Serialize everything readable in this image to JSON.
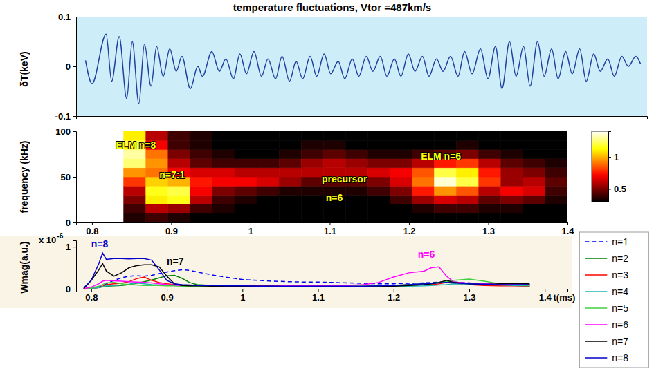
{
  "chart_data": [
    {
      "type": "line",
      "title": "temperature fluctuations, Vtor =487km/s",
      "y_label": "δT(keV)",
      "xlim": [
        0.78,
        1.39
      ],
      "ylim": [
        -0.1,
        0.1
      ],
      "yticks": [
        -0.1,
        0,
        0.1
      ],
      "tick_labels": "y",
      "x": [
        0.79,
        0.797,
        0.812,
        0.818,
        0.826,
        0.834,
        0.84,
        0.847,
        0.853,
        0.86,
        0.866,
        0.873,
        0.88,
        0.887,
        0.893,
        0.902,
        0.91,
        0.915,
        0.925,
        0.933,
        0.94,
        0.948,
        0.955,
        0.962,
        0.97,
        0.978,
        0.985,
        0.993,
        1.0,
        1.008,
        1.015,
        1.022,
        1.03,
        1.037,
        1.045,
        1.052,
        1.06,
        1.067,
        1.075,
        1.082,
        1.09,
        1.097,
        1.105,
        1.112,
        1.12,
        1.127,
        1.135,
        1.142,
        1.15,
        1.157,
        1.165,
        1.172,
        1.18,
        1.188,
        1.195,
        1.203,
        1.212,
        1.22,
        1.228,
        1.235,
        1.243,
        1.25,
        1.258,
        1.265,
        1.273,
        1.28,
        1.288,
        1.295,
        1.303,
        1.31,
        1.318,
        1.325,
        1.333,
        1.34,
        1.348,
        1.355,
        1.363,
        1.37,
        1.378,
        1.383
      ],
      "series": [
        {
          "color": "#2040a0",
          "line_style": "solid",
          "values": [
            0.012,
            -0.035,
            0.065,
            -0.03,
            0.06,
            -0.065,
            0.05,
            -0.075,
            0.045,
            -0.04,
            0.04,
            -0.02,
            0.035,
            -0.01,
            0.02,
            -0.045,
            0.0,
            -0.02,
            0.03,
            -0.01,
            0.015,
            -0.025,
            0.025,
            -0.015,
            0.03,
            -0.02,
            0.015,
            -0.025,
            0.02,
            -0.03,
            0.01,
            -0.025,
            0.02,
            -0.02,
            0.025,
            -0.015,
            0.01,
            -0.025,
            0.015,
            -0.02,
            0.02,
            -0.01,
            0.02,
            -0.02,
            0.015,
            -0.02,
            0.025,
            -0.01,
            0.02,
            -0.02,
            0.015,
            -0.01,
            0.02,
            -0.02,
            0.03,
            -0.015,
            0.035,
            -0.025,
            0.04,
            -0.045,
            0.05,
            -0.02,
            0.04,
            -0.04,
            0.05,
            -0.02,
            0.035,
            -0.025,
            0.03,
            -0.015,
            0.035,
            -0.03,
            0.025,
            -0.01,
            0.015,
            -0.02,
            0.02,
            0.0,
            0.02,
            0.005
          ]
        }
      ]
    },
    {
      "type": "heatmap",
      "y_label": "frequency (kHz)",
      "xlim": [
        0.78,
        1.4
      ],
      "xticks": [
        0.8,
        0.9,
        1,
        1.1,
        1.2,
        1.3,
        1.4
      ],
      "ylim": [
        0,
        100
      ],
      "yticks": [
        0,
        50,
        100
      ],
      "x_bins": [
        0.84,
        0.868,
        0.896,
        0.924,
        0.952,
        0.98,
        1.008,
        1.036,
        1.064,
        1.092,
        1.12,
        1.148,
        1.176,
        1.204,
        1.232,
        1.26,
        1.288,
        1.316,
        1.344,
        1.372,
        1.4
      ],
      "y_bins": [
        0,
        10,
        20,
        30,
        40,
        50,
        60,
        70,
        80,
        90,
        100
      ],
      "cells": [
        [
          0.35,
          0.4,
          0.35,
          0.3,
          0.3,
          0.3,
          0.3,
          0.3,
          0.3,
          0.3,
          0.3,
          0.3,
          0.3,
          0.3,
          0.3,
          0.3,
          0.3,
          0.3,
          0.3,
          0.3
        ],
        [
          0.4,
          0.6,
          0.55,
          0.4,
          0.35,
          0.3,
          0.3,
          0.3,
          0.3,
          0.3,
          0.3,
          0.3,
          0.3,
          0.35,
          0.4,
          0.4,
          0.35,
          0.35,
          0.3,
          0.3
        ],
        [
          0.5,
          1.1,
          1.15,
          0.6,
          0.4,
          0.35,
          0.3,
          0.3,
          0.3,
          0.3,
          0.3,
          0.3,
          0.4,
          0.55,
          0.65,
          0.6,
          0.45,
          0.5,
          0.45,
          0.35
        ],
        [
          0.6,
          1.15,
          1.2,
          0.7,
          0.5,
          0.45,
          0.4,
          0.35,
          0.35,
          0.35,
          0.35,
          0.4,
          0.5,
          0.75,
          0.95,
          0.85,
          0.6,
          0.7,
          0.65,
          0.4
        ],
        [
          0.8,
          1.05,
          1.0,
          0.75,
          0.7,
          0.7,
          0.65,
          0.55,
          0.45,
          0.45,
          0.45,
          0.5,
          0.65,
          0.9,
          1.35,
          1.2,
          0.8,
          0.55,
          0.6,
          0.45
        ],
        [
          0.95,
          0.9,
          0.7,
          0.65,
          0.65,
          0.6,
          0.6,
          0.6,
          0.6,
          0.6,
          0.6,
          0.65,
          0.7,
          0.85,
          1.2,
          1.1,
          0.75,
          0.55,
          0.5,
          0.4
        ],
        [
          1.25,
          0.95,
          0.6,
          0.45,
          0.4,
          0.4,
          0.4,
          0.45,
          0.55,
          0.6,
          0.55,
          0.5,
          0.5,
          0.6,
          0.75,
          0.8,
          0.6,
          0.45,
          0.4,
          0.35
        ],
        [
          1.3,
          0.9,
          0.5,
          0.4,
          0.35,
          0.3,
          0.3,
          0.35,
          0.4,
          0.45,
          0.4,
          0.35,
          0.35,
          0.4,
          0.45,
          0.5,
          0.4,
          0.35,
          0.3,
          0.3
        ],
        [
          1.2,
          0.7,
          0.4,
          0.35,
          0.3,
          0.3,
          0.3,
          0.3,
          0.35,
          0.35,
          0.3,
          0.3,
          0.3,
          0.3,
          0.3,
          0.35,
          0.3,
          0.3,
          0.3,
          0.3
        ],
        [
          1.1,
          0.6,
          0.4,
          0.35,
          0.3,
          0.3,
          0.3,
          0.3,
          0.3,
          0.3,
          0.3,
          0.3,
          0.3,
          0.3,
          0.3,
          0.3,
          0.3,
          0.3,
          0.3,
          0.3
        ]
      ],
      "colorbar": {
        "range": [
          0.3,
          1.4
        ],
        "ticks": [
          0.5,
          1
        ]
      },
      "annotations": [
        {
          "text": "ELM n=8",
          "x": 0.83,
          "y": 85,
          "color": "#ffff00"
        },
        {
          "text": "n=7:1",
          "x": 0.885,
          "y": 52,
          "color": "#ffff00"
        },
        {
          "text": "precursor",
          "x": 1.09,
          "y": 48,
          "color": "#ffff00"
        },
        {
          "text": "n=6",
          "x": 1.095,
          "y": 27,
          "color": "#ffff00"
        },
        {
          "text": "ELM n=6",
          "x": 1.215,
          "y": 73,
          "color": "#ffff00"
        }
      ]
    },
    {
      "type": "line",
      "y_label": "Wmag(a.u.)",
      "x_label": "t(ms)",
      "y_scale_text": "x 10",
      "y_scale_exponent": "-6",
      "xlim": [
        0.78,
        1.43
      ],
      "xticks": [
        0.8,
        0.9,
        1,
        1.1,
        1.2,
        1.3,
        1.4
      ],
      "ylim": [
        0,
        1.15
      ],
      "yticks": [
        0,
        1
      ],
      "legend": "right",
      "x": [
        0.79,
        0.8,
        0.81,
        0.815,
        0.82,
        0.83,
        0.84,
        0.85,
        0.86,
        0.87,
        0.88,
        0.89,
        0.9,
        0.91,
        0.92,
        0.93,
        0.94,
        0.96,
        0.98,
        1.0,
        1.02,
        1.04,
        1.06,
        1.08,
        1.1,
        1.12,
        1.14,
        1.16,
        1.18,
        1.2,
        1.22,
        1.24,
        1.25,
        1.26,
        1.27,
        1.28,
        1.3,
        1.32,
        1.34,
        1.36,
        1.38
      ],
      "series": [
        {
          "name": "n=1",
          "color": "#0000ff",
          "line_style": "dashed",
          "values": [
            0.0,
            0.02,
            0.05,
            0.08,
            0.12,
            0.2,
            0.26,
            0.3,
            0.31,
            0.3,
            0.32,
            0.36,
            0.4,
            0.43,
            0.45,
            0.44,
            0.4,
            0.33,
            0.27,
            0.22,
            0.2,
            0.18,
            0.17,
            0.16,
            0.16,
            0.15,
            0.14,
            0.13,
            0.12,
            0.12,
            0.13,
            0.14,
            0.15,
            0.16,
            0.17,
            0.16,
            0.14,
            0.12,
            0.11,
            0.1,
            0.1
          ]
        },
        {
          "name": "n=2",
          "color": "#008000",
          "line_style": "solid",
          "values": [
            0.0,
            0.01,
            0.03,
            0.05,
            0.06,
            0.07,
            0.08,
            0.1,
            0.13,
            0.17,
            0.21,
            0.26,
            0.31,
            0.32,
            0.25,
            0.15,
            0.1,
            0.08,
            0.07,
            0.07,
            0.06,
            0.06,
            0.06,
            0.06,
            0.06,
            0.06,
            0.06,
            0.06,
            0.07,
            0.08,
            0.1,
            0.12,
            0.13,
            0.15,
            0.17,
            0.15,
            0.12,
            0.1,
            0.09,
            0.08,
            0.07
          ]
        },
        {
          "name": "n=3",
          "color": "#ff0000",
          "line_style": "solid",
          "values": [
            0.0,
            0.01,
            0.03,
            0.06,
            0.1,
            0.12,
            0.13,
            0.17,
            0.24,
            0.28,
            0.2,
            0.15,
            0.12,
            0.1,
            0.08,
            0.07,
            0.07,
            0.07,
            0.06,
            0.06,
            0.06,
            0.06,
            0.05,
            0.05,
            0.05,
            0.05,
            0.05,
            0.05,
            0.06,
            0.07,
            0.08,
            0.1,
            0.1,
            0.12,
            0.15,
            0.13,
            0.1,
            0.08,
            0.07,
            0.07,
            0.06
          ]
        },
        {
          "name": "n=4",
          "color": "#1fb5b5",
          "line_style": "solid",
          "values": [
            0.0,
            0.01,
            0.03,
            0.05,
            0.07,
            0.08,
            0.09,
            0.11,
            0.14,
            0.12,
            0.1,
            0.09,
            0.08,
            0.08,
            0.07,
            0.07,
            0.06,
            0.06,
            0.05,
            0.05,
            0.05,
            0.05,
            0.05,
            0.05,
            0.05,
            0.05,
            0.05,
            0.05,
            0.05,
            0.05,
            0.06,
            0.07,
            0.08,
            0.09,
            0.1,
            0.12,
            0.11,
            0.1,
            0.09,
            0.08,
            0.07
          ]
        },
        {
          "name": "n=5",
          "color": "#40d040",
          "line_style": "solid",
          "values": [
            0.0,
            0.02,
            0.06,
            0.1,
            0.14,
            0.15,
            0.12,
            0.1,
            0.09,
            0.08,
            0.08,
            0.08,
            0.07,
            0.07,
            0.06,
            0.06,
            0.06,
            0.05,
            0.05,
            0.05,
            0.05,
            0.05,
            0.05,
            0.05,
            0.05,
            0.05,
            0.05,
            0.05,
            0.06,
            0.07,
            0.08,
            0.1,
            0.12,
            0.14,
            0.17,
            0.2,
            0.23,
            0.18,
            0.12,
            0.1,
            0.08
          ]
        },
        {
          "name": "n=6",
          "color": "#ff00ff",
          "line_style": "solid",
          "values": [
            0.0,
            0.04,
            0.12,
            0.18,
            0.2,
            0.19,
            0.18,
            0.17,
            0.16,
            0.15,
            0.14,
            0.12,
            0.1,
            0.09,
            0.08,
            0.08,
            0.08,
            0.08,
            0.08,
            0.08,
            0.08,
            0.08,
            0.08,
            0.08,
            0.08,
            0.08,
            0.08,
            0.1,
            0.15,
            0.28,
            0.38,
            0.42,
            0.5,
            0.52,
            0.3,
            0.16,
            0.13,
            0.12,
            0.11,
            0.1,
            0.1
          ]
        },
        {
          "name": "n=7",
          "color": "#000000",
          "line_style": "solid",
          "values": [
            0.0,
            0.2,
            0.45,
            0.6,
            0.42,
            0.3,
            0.38,
            0.5,
            0.55,
            0.57,
            0.57,
            0.52,
            0.3,
            0.12,
            0.08,
            0.07,
            0.07,
            0.06,
            0.06,
            0.06,
            0.06,
            0.06,
            0.05,
            0.05,
            0.05,
            0.05,
            0.05,
            0.05,
            0.05,
            0.06,
            0.08,
            0.1,
            0.12,
            0.15,
            0.2,
            0.15,
            0.12,
            0.1,
            0.12,
            0.13,
            0.12
          ]
        },
        {
          "name": "n=8",
          "color": "#0000cc",
          "line_style": "solid",
          "values": [
            0.02,
            0.2,
            0.6,
            0.85,
            0.7,
            0.72,
            0.72,
            0.71,
            0.72,
            0.72,
            0.68,
            0.45,
            0.2,
            0.12,
            0.1,
            0.09,
            0.08,
            0.08,
            0.07,
            0.07,
            0.06,
            0.06,
            0.06,
            0.06,
            0.06,
            0.06,
            0.06,
            0.06,
            0.07,
            0.08,
            0.1,
            0.12,
            0.13,
            0.14,
            0.15,
            0.14,
            0.12,
            0.11,
            0.1,
            0.1,
            0.1
          ]
        }
      ],
      "annotations": [
        {
          "text": "n=8",
          "x": 0.8,
          "y": 1.06,
          "color": "#0000cc"
        },
        {
          "text": "n=7",
          "x": 0.9,
          "y": 0.66,
          "color": "#000000"
        },
        {
          "text": "n=6",
          "x": 1.232,
          "y": 0.82,
          "color": "#ff00ff"
        }
      ]
    }
  ]
}
